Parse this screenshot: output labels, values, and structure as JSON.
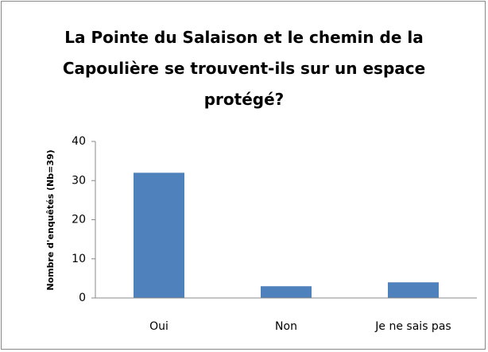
{
  "chart_data": {
    "type": "bar",
    "title": "La Pointe du Salaison et le chemin de la Capoulière se trouvent-ils sur un espace protégé?",
    "y_label": "Nombre d'enquêtés (Nb=39)",
    "categories": [
      "Oui",
      "Non",
      "Je ne sais pas"
    ],
    "values": [
      32,
      3,
      4
    ],
    "color": "#4f81bd",
    "ylim": [
      0,
      40
    ],
    "yticks": [
      0,
      10,
      20,
      30,
      40
    ],
    "grid": false
  }
}
